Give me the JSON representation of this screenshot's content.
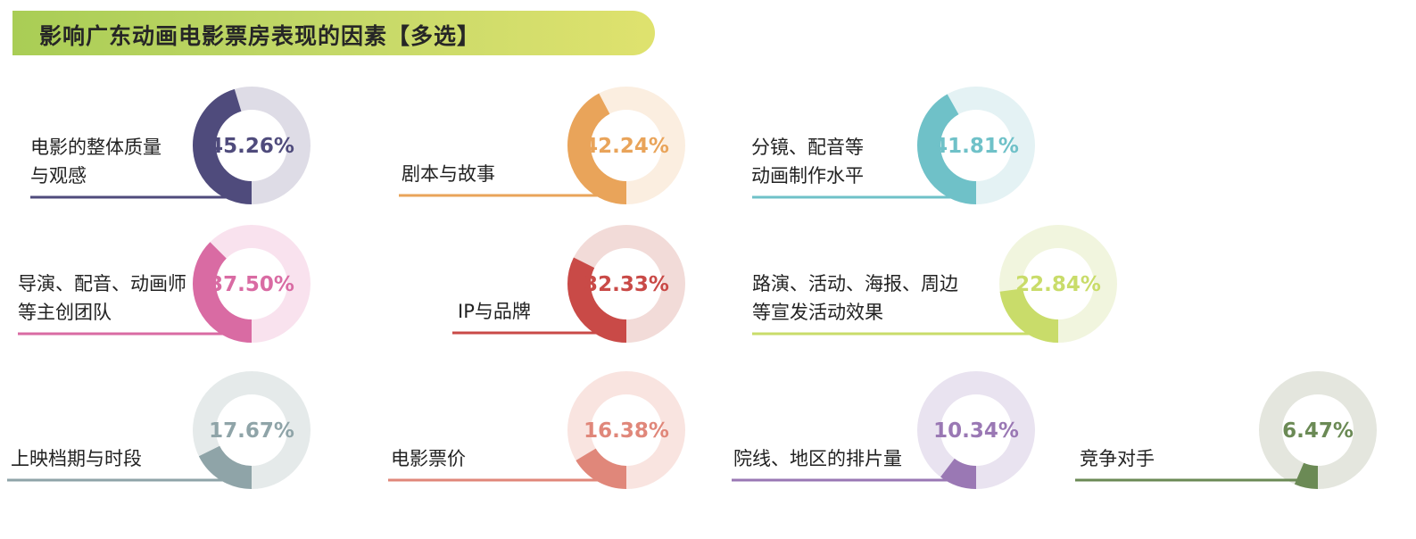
{
  "chart_data": {
    "type": "donut",
    "title": "影响广东动画电影票房表现的因素【多选】",
    "items": [
      {
        "label_lines": [
          "电影的整体质量",
          "与观感"
        ],
        "value": 45.26,
        "display": "45.26%",
        "color": "#4f4b7c",
        "track": "#dedce6"
      },
      {
        "label_lines": [
          "剧本与故事"
        ],
        "value": 42.24,
        "display": "42.24%",
        "color": "#e9a45a",
        "track": "#fbeee0"
      },
      {
        "label_lines": [
          "分镜、配音等",
          "动画制作水平"
        ],
        "value": 41.81,
        "display": "41.81%",
        "color": "#6fc1c8",
        "track": "#e4f2f4"
      },
      {
        "label_lines": [
          "导演、配音、动画师",
          "等主创团队"
        ],
        "value": 37.5,
        "display": "37.50%",
        "color": "#d96ba3",
        "track": "#f9e2ee"
      },
      {
        "label_lines": [
          "IP与品牌"
        ],
        "value": 32.33,
        "display": "32.33%",
        "color": "#c94a47",
        "track": "#f2dbd8"
      },
      {
        "label_lines": [
          "路演、活动、海报、周边",
          "等宣发活动效果"
        ],
        "value": 22.84,
        "display": "22.84%",
        "color": "#c9dc6a",
        "track": "#f1f5de"
      },
      {
        "label_lines": [
          "上映档期与时段"
        ],
        "value": 17.67,
        "display": "17.67%",
        "color": "#8fa4a8",
        "track": "#e5eaea"
      },
      {
        "label_lines": [
          "电影票价"
        ],
        "value": 16.38,
        "display": "16.38%",
        "color": "#e0877a",
        "track": "#f9e4e0"
      },
      {
        "label_lines": [
          "院线、地区的排片量"
        ],
        "value": 10.34,
        "display": "10.34%",
        "color": "#9a78b4",
        "track": "#e9e3f0"
      },
      {
        "label_lines": [
          "竞争对手"
        ],
        "value": 6.47,
        "display": "6.47%",
        "color": "#6b8a55",
        "track": "#e4e6de"
      }
    ]
  }
}
